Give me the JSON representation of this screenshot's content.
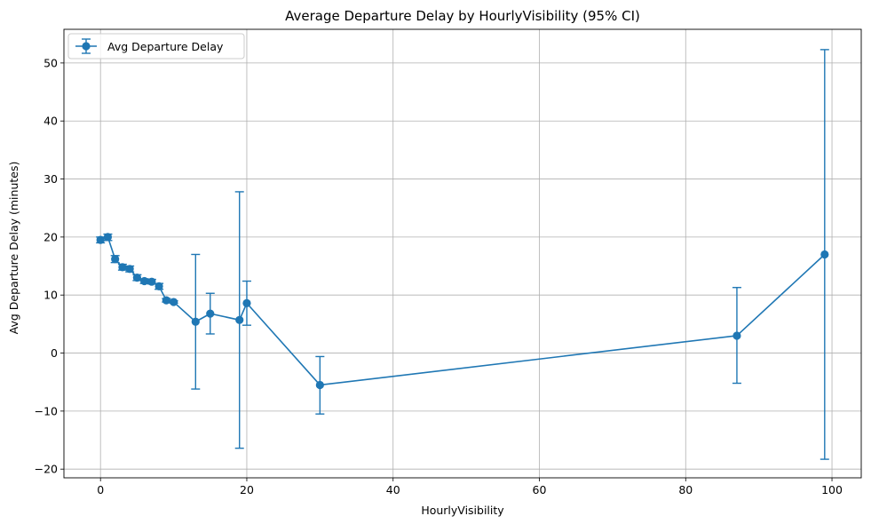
{
  "chart_data": {
    "type": "line",
    "title": "Average Departure Delay by HourlyVisibility (95% CI)",
    "xlabel": "HourlyVisibility",
    "ylabel": "Avg Departure Delay (minutes)",
    "xlim": [
      -5,
      104
    ],
    "ylim": [
      -21.5,
      55.8
    ],
    "xticks": [
      0,
      20,
      40,
      60,
      80,
      100
    ],
    "yticks": [
      -20,
      -10,
      0,
      10,
      20,
      30,
      40,
      50
    ],
    "grid": true,
    "legend": {
      "position": "top-left",
      "entries": [
        "Avg Departure Delay"
      ]
    },
    "colors": {
      "series": "#1f77b4",
      "grid": "#b0b0b0"
    },
    "series": [
      {
        "name": "Avg Departure Delay",
        "points": [
          {
            "x": 0,
            "y": 19.5,
            "lo": 19.0,
            "hi": 20.0
          },
          {
            "x": 1,
            "y": 20.0,
            "lo": 19.4,
            "hi": 20.5
          },
          {
            "x": 2,
            "y": 16.2,
            "lo": 15.6,
            "hi": 16.8
          },
          {
            "x": 3,
            "y": 14.8,
            "lo": 14.3,
            "hi": 15.3
          },
          {
            "x": 4,
            "y": 14.5,
            "lo": 14.0,
            "hi": 15.0
          },
          {
            "x": 5,
            "y": 13.0,
            "lo": 12.5,
            "hi": 13.5
          },
          {
            "x": 6,
            "y": 12.4,
            "lo": 12.0,
            "hi": 12.8
          },
          {
            "x": 7,
            "y": 12.3,
            "lo": 11.9,
            "hi": 12.7
          },
          {
            "x": 8,
            "y": 11.5,
            "lo": 11.0,
            "hi": 12.0
          },
          {
            "x": 9,
            "y": 9.1,
            "lo": 8.8,
            "hi": 9.4
          },
          {
            "x": 10,
            "y": 8.8,
            "lo": 8.6,
            "hi": 9.0
          },
          {
            "x": 13,
            "y": 5.4,
            "lo": -6.2,
            "hi": 17.0
          },
          {
            "x": 15,
            "y": 6.8,
            "lo": 3.3,
            "hi": 10.3
          },
          {
            "x": 19,
            "y": 5.7,
            "lo": -16.4,
            "hi": 27.8
          },
          {
            "x": 20,
            "y": 8.6,
            "lo": 4.8,
            "hi": 12.4
          },
          {
            "x": 30,
            "y": -5.5,
            "lo": -10.5,
            "hi": -0.6
          },
          {
            "x": 87,
            "y": 3.0,
            "lo": -5.2,
            "hi": 11.3
          },
          {
            "x": 99,
            "y": 17.0,
            "lo": -18.3,
            "hi": 52.3
          }
        ]
      }
    ]
  }
}
